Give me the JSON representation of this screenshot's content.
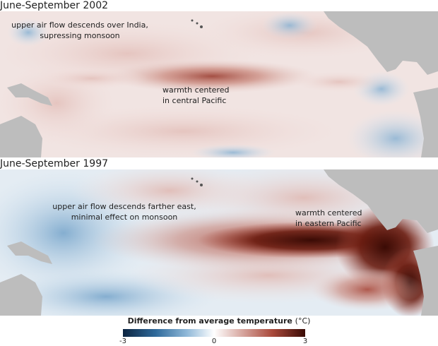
{
  "panels": [
    {
      "title": "June-September 2002",
      "annotations": [
        "upper air flow descends over India,",
        "supressing monsoon",
        "warmth centered",
        "in central Pacific"
      ]
    },
    {
      "title": "June-September 1997",
      "annotations": [
        "upper air flow descends farther east,",
        "minimal effect on monsoon",
        "warmth centered",
        "in eastern Pacific"
      ]
    }
  ],
  "legend": {
    "title": "Difference from average temperature",
    "unit": "(°C)",
    "min_label": "-3",
    "mid_label": "0",
    "max_label": "3",
    "colors": {
      "cold": "#0c2440",
      "neutral": "#ffffff",
      "warm": "#3a0b05",
      "land": "#bdbdbd"
    }
  }
}
